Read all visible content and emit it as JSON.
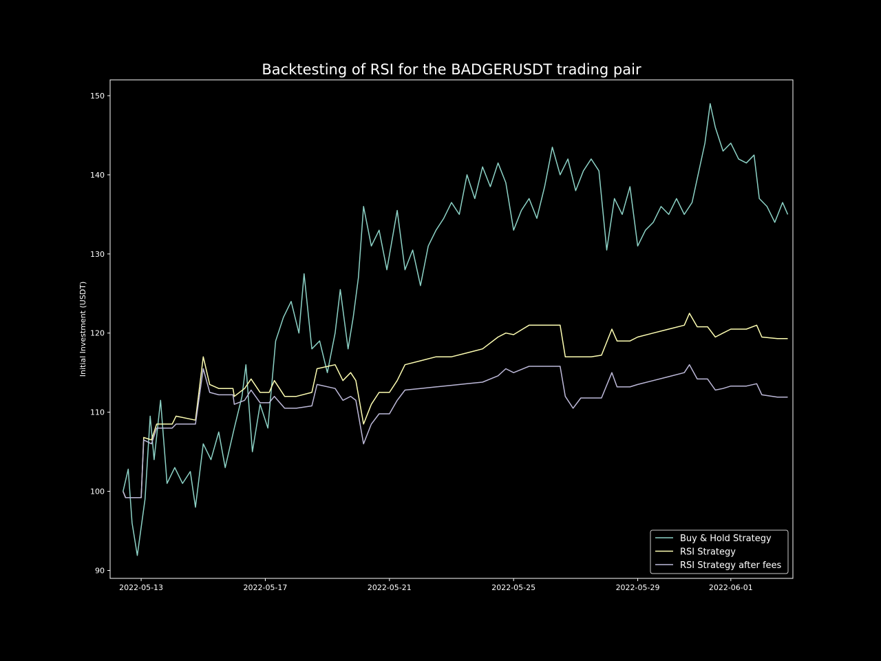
{
  "chart_data": {
    "type": "line",
    "title": "Backtesting of RSI for the BADGERUSDT trading pair",
    "xlabel": "",
    "ylabel": "Initial Investment (USDT)",
    "x_type": "date",
    "xlim": [
      "2022-05-12",
      "2022-06-03"
    ],
    "ylim": [
      89,
      152
    ],
    "x_ticks": [
      "2022-05-13",
      "2022-05-17",
      "2022-05-21",
      "2022-05-25",
      "2022-05-29",
      "2022-06-01"
    ],
    "y_ticks": [
      90,
      100,
      110,
      120,
      130,
      140,
      150
    ],
    "grid": false,
    "legend_position": "lower-right",
    "background": "#000000",
    "series": [
      {
        "name": "Buy & Hold Strategy",
        "color": "#8dd3c7",
        "points": [
          [
            "2022-05-12T10:00",
            100.0
          ],
          [
            "2022-05-12T14:00",
            102.8
          ],
          [
            "2022-05-12T17:00",
            96.0
          ],
          [
            "2022-05-12T21:00",
            91.9
          ],
          [
            "2022-05-13T03:00",
            99.0
          ],
          [
            "2022-05-13T07:00",
            109.5
          ],
          [
            "2022-05-13T10:00",
            104.0
          ],
          [
            "2022-05-13T15:00",
            111.5
          ],
          [
            "2022-05-13T20:00",
            101.0
          ],
          [
            "2022-05-14T02:00",
            103.0
          ],
          [
            "2022-05-14T08:00",
            101.0
          ],
          [
            "2022-05-14T14:00",
            102.5
          ],
          [
            "2022-05-14T18:00",
            98.0
          ],
          [
            "2022-05-15T00:00",
            106.0
          ],
          [
            "2022-05-15T06:00",
            104.0
          ],
          [
            "2022-05-15T12:00",
            107.5
          ],
          [
            "2022-05-15T17:00",
            103.0
          ],
          [
            "2022-05-16T00:00",
            108.0
          ],
          [
            "2022-05-16T06:00",
            112.0
          ],
          [
            "2022-05-16T09:00",
            116.0
          ],
          [
            "2022-05-16T14:00",
            105.0
          ],
          [
            "2022-05-16T20:00",
            111.0
          ],
          [
            "2022-05-17T02:00",
            108.0
          ],
          [
            "2022-05-17T08:00",
            119.0
          ],
          [
            "2022-05-17T14:00",
            122.0
          ],
          [
            "2022-05-17T20:00",
            124.0
          ],
          [
            "2022-05-18T02:00",
            120.0
          ],
          [
            "2022-05-18T06:00",
            127.5
          ],
          [
            "2022-05-18T12:00",
            118.0
          ],
          [
            "2022-05-18T18:00",
            119.0
          ],
          [
            "2022-05-19T00:00",
            115.0
          ],
          [
            "2022-05-19T06:00",
            120.0
          ],
          [
            "2022-05-19T10:00",
            125.5
          ],
          [
            "2022-05-19T16:00",
            118.0
          ],
          [
            "2022-05-19T20:00",
            122.0
          ],
          [
            "2022-05-20T00:00",
            127.0
          ],
          [
            "2022-05-20T04:00",
            136.0
          ],
          [
            "2022-05-20T10:00",
            131.0
          ],
          [
            "2022-05-20T16:00",
            133.0
          ],
          [
            "2022-05-20T22:00",
            128.0
          ],
          [
            "2022-05-21T06:00",
            135.5
          ],
          [
            "2022-05-21T12:00",
            128.0
          ],
          [
            "2022-05-21T18:00",
            130.5
          ],
          [
            "2022-05-22T00:00",
            126.0
          ],
          [
            "2022-05-22T06:00",
            131.0
          ],
          [
            "2022-05-22T12:00",
            133.0
          ],
          [
            "2022-05-22T18:00",
            134.5
          ],
          [
            "2022-05-23T00:00",
            136.5
          ],
          [
            "2022-05-23T06:00",
            135.0
          ],
          [
            "2022-05-23T12:00",
            140.0
          ],
          [
            "2022-05-23T18:00",
            137.0
          ],
          [
            "2022-05-24T00:00",
            141.0
          ],
          [
            "2022-05-24T06:00",
            138.5
          ],
          [
            "2022-05-24T12:00",
            141.5
          ],
          [
            "2022-05-24T18:00",
            139.0
          ],
          [
            "2022-05-25T00:00",
            133.0
          ],
          [
            "2022-05-25T06:00",
            135.5
          ],
          [
            "2022-05-25T12:00",
            137.0
          ],
          [
            "2022-05-25T18:00",
            134.5
          ],
          [
            "2022-05-26T00:00",
            138.5
          ],
          [
            "2022-05-26T06:00",
            143.5
          ],
          [
            "2022-05-26T12:00",
            140.0
          ],
          [
            "2022-05-26T18:00",
            142.0
          ],
          [
            "2022-05-27T00:00",
            138.0
          ],
          [
            "2022-05-27T06:00",
            140.5
          ],
          [
            "2022-05-27T12:00",
            142.0
          ],
          [
            "2022-05-27T18:00",
            140.5
          ],
          [
            "2022-05-28T00:00",
            130.5
          ],
          [
            "2022-05-28T06:00",
            137.0
          ],
          [
            "2022-05-28T12:00",
            135.0
          ],
          [
            "2022-05-28T18:00",
            138.5
          ],
          [
            "2022-05-29T00:00",
            131.0
          ],
          [
            "2022-05-29T06:00",
            133.0
          ],
          [
            "2022-05-29T12:00",
            134.0
          ],
          [
            "2022-05-29T18:00",
            136.0
          ],
          [
            "2022-05-30T00:00",
            135.0
          ],
          [
            "2022-05-30T06:00",
            137.0
          ],
          [
            "2022-05-30T12:00",
            135.0
          ],
          [
            "2022-05-30T18:00",
            136.5
          ],
          [
            "2022-05-31T00:00",
            141.0
          ],
          [
            "2022-05-31T04:00",
            144.0
          ],
          [
            "2022-05-31T08:00",
            149.0
          ],
          [
            "2022-05-31T12:00",
            146.0
          ],
          [
            "2022-05-31T18:00",
            143.0
          ],
          [
            "2022-06-01T00:00",
            144.0
          ],
          [
            "2022-06-01T06:00",
            142.0
          ],
          [
            "2022-06-01T12:00",
            141.5
          ],
          [
            "2022-06-01T18:00",
            142.5
          ],
          [
            "2022-06-01T22:00",
            137.0
          ],
          [
            "2022-06-02T04:00",
            136.0
          ],
          [
            "2022-06-02T10:00",
            134.0
          ],
          [
            "2022-06-02T16:00",
            136.5
          ],
          [
            "2022-06-02T20:00",
            135.0
          ]
        ]
      },
      {
        "name": "RSI Strategy",
        "color": "#ffffb3",
        "points": [
          [
            "2022-05-12T10:00",
            100.0
          ],
          [
            "2022-05-12T12:00",
            99.2
          ],
          [
            "2022-05-13T00:00",
            99.2
          ],
          [
            "2022-05-13T02:00",
            106.8
          ],
          [
            "2022-05-13T08:00",
            106.5
          ],
          [
            "2022-05-13T12:00",
            108.5
          ],
          [
            "2022-05-14T00:00",
            108.5
          ],
          [
            "2022-05-14T03:00",
            109.5
          ],
          [
            "2022-05-14T18:00",
            109.0
          ],
          [
            "2022-05-15T00:00",
            117.0
          ],
          [
            "2022-05-15T05:00",
            113.5
          ],
          [
            "2022-05-15T12:00",
            113.0
          ],
          [
            "2022-05-15T23:00",
            113.0
          ],
          [
            "2022-05-16T00:00",
            112.0
          ],
          [
            "2022-05-16T08:00",
            113.0
          ],
          [
            "2022-05-16T13:00",
            114.2
          ],
          [
            "2022-05-16T20:00",
            112.5
          ],
          [
            "2022-05-17T03:00",
            112.5
          ],
          [
            "2022-05-17T07:00",
            114.0
          ],
          [
            "2022-05-17T15:00",
            112.0
          ],
          [
            "2022-05-18T00:00",
            112.0
          ],
          [
            "2022-05-18T12:00",
            112.5
          ],
          [
            "2022-05-18T16:00",
            115.5
          ],
          [
            "2022-05-19T06:00",
            116.0
          ],
          [
            "2022-05-19T12:00",
            114.0
          ],
          [
            "2022-05-19T18:00",
            115.0
          ],
          [
            "2022-05-19T22:00",
            114.0
          ],
          [
            "2022-05-20T04:00",
            108.5
          ],
          [
            "2022-05-20T10:00",
            111.0
          ],
          [
            "2022-05-20T16:00",
            112.5
          ],
          [
            "2022-05-21T00:00",
            112.5
          ],
          [
            "2022-05-21T06:00",
            114.0
          ],
          [
            "2022-05-21T12:00",
            116.0
          ],
          [
            "2022-05-22T00:00",
            116.5
          ],
          [
            "2022-05-22T12:00",
            117.0
          ],
          [
            "2022-05-23T00:00",
            117.0
          ],
          [
            "2022-05-23T12:00",
            117.5
          ],
          [
            "2022-05-24T00:00",
            118.0
          ],
          [
            "2022-05-24T12:00",
            119.5
          ],
          [
            "2022-05-24T18:00",
            120.0
          ],
          [
            "2022-05-25T00:00",
            119.8
          ],
          [
            "2022-05-25T12:00",
            121.0
          ],
          [
            "2022-05-26T00:00",
            121.0
          ],
          [
            "2022-05-26T12:00",
            121.0
          ],
          [
            "2022-05-26T16:00",
            117.0
          ],
          [
            "2022-05-27T00:00",
            117.0
          ],
          [
            "2022-05-27T12:00",
            117.0
          ],
          [
            "2022-05-27T20:00",
            117.2
          ],
          [
            "2022-05-28T04:00",
            120.5
          ],
          [
            "2022-05-28T08:00",
            119.0
          ],
          [
            "2022-05-28T18:00",
            119.0
          ],
          [
            "2022-05-29T00:00",
            119.5
          ],
          [
            "2022-05-29T12:00",
            120.0
          ],
          [
            "2022-05-30T00:00",
            120.5
          ],
          [
            "2022-05-30T12:00",
            121.0
          ],
          [
            "2022-05-30T16:00",
            122.5
          ],
          [
            "2022-05-30T22:00",
            120.8
          ],
          [
            "2022-05-31T06:00",
            120.8
          ],
          [
            "2022-05-31T12:00",
            119.5
          ],
          [
            "2022-05-31T18:00",
            120.0
          ],
          [
            "2022-06-01T00:00",
            120.5
          ],
          [
            "2022-06-01T12:00",
            120.5
          ],
          [
            "2022-06-01T20:00",
            121.0
          ],
          [
            "2022-06-02T00:00",
            119.5
          ],
          [
            "2022-06-02T12:00",
            119.3
          ],
          [
            "2022-06-02T20:00",
            119.3
          ]
        ]
      },
      {
        "name": "RSI Strategy after fees",
        "color": "#bebada",
        "points": [
          [
            "2022-05-12T10:00",
            100.0
          ],
          [
            "2022-05-12T12:00",
            99.2
          ],
          [
            "2022-05-13T00:00",
            99.2
          ],
          [
            "2022-05-13T02:00",
            106.5
          ],
          [
            "2022-05-13T08:00",
            106.0
          ],
          [
            "2022-05-13T12:00",
            108.0
          ],
          [
            "2022-05-14T00:00",
            108.0
          ],
          [
            "2022-05-14T03:00",
            108.5
          ],
          [
            "2022-05-14T18:00",
            108.5
          ],
          [
            "2022-05-15T00:00",
            115.5
          ],
          [
            "2022-05-15T05:00",
            112.5
          ],
          [
            "2022-05-15T12:00",
            112.2
          ],
          [
            "2022-05-15T23:00",
            112.2
          ],
          [
            "2022-05-16T00:00",
            111.0
          ],
          [
            "2022-05-16T08:00",
            111.5
          ],
          [
            "2022-05-16T13:00",
            112.8
          ],
          [
            "2022-05-16T20:00",
            111.2
          ],
          [
            "2022-05-17T03:00",
            111.2
          ],
          [
            "2022-05-17T07:00",
            112.0
          ],
          [
            "2022-05-17T15:00",
            110.5
          ],
          [
            "2022-05-18T00:00",
            110.5
          ],
          [
            "2022-05-18T12:00",
            110.8
          ],
          [
            "2022-05-18T16:00",
            113.5
          ],
          [
            "2022-05-19T06:00",
            113.0
          ],
          [
            "2022-05-19T12:00",
            111.5
          ],
          [
            "2022-05-19T18:00",
            112.0
          ],
          [
            "2022-05-19T22:00",
            111.5
          ],
          [
            "2022-05-20T04:00",
            106.0
          ],
          [
            "2022-05-20T10:00",
            108.5
          ],
          [
            "2022-05-20T16:00",
            109.8
          ],
          [
            "2022-05-21T00:00",
            109.8
          ],
          [
            "2022-05-21T06:00",
            111.5
          ],
          [
            "2022-05-21T12:00",
            112.8
          ],
          [
            "2022-05-22T00:00",
            113.0
          ],
          [
            "2022-05-22T12:00",
            113.2
          ],
          [
            "2022-05-23T00:00",
            113.4
          ],
          [
            "2022-05-23T12:00",
            113.6
          ],
          [
            "2022-05-24T00:00",
            113.8
          ],
          [
            "2022-05-24T12:00",
            114.6
          ],
          [
            "2022-05-24T18:00",
            115.5
          ],
          [
            "2022-05-25T00:00",
            115.0
          ],
          [
            "2022-05-25T12:00",
            115.8
          ],
          [
            "2022-05-26T00:00",
            115.8
          ],
          [
            "2022-05-26T12:00",
            115.8
          ],
          [
            "2022-05-26T16:00",
            112.0
          ],
          [
            "2022-05-26T22:00",
            110.5
          ],
          [
            "2022-05-27T04:00",
            111.8
          ],
          [
            "2022-05-27T12:00",
            111.8
          ],
          [
            "2022-05-27T20:00",
            111.8
          ],
          [
            "2022-05-28T04:00",
            115.0
          ],
          [
            "2022-05-28T08:00",
            113.2
          ],
          [
            "2022-05-28T18:00",
            113.2
          ],
          [
            "2022-05-29T00:00",
            113.5
          ],
          [
            "2022-05-29T12:00",
            114.0
          ],
          [
            "2022-05-30T00:00",
            114.5
          ],
          [
            "2022-05-30T12:00",
            115.0
          ],
          [
            "2022-05-30T16:00",
            116.0
          ],
          [
            "2022-05-30T22:00",
            114.2
          ],
          [
            "2022-05-31T06:00",
            114.2
          ],
          [
            "2022-05-31T12:00",
            112.8
          ],
          [
            "2022-05-31T18:00",
            113.0
          ],
          [
            "2022-06-01T00:00",
            113.3
          ],
          [
            "2022-06-01T12:00",
            113.3
          ],
          [
            "2022-06-01T20:00",
            113.6
          ],
          [
            "2022-06-02T00:00",
            112.2
          ],
          [
            "2022-06-02T12:00",
            111.9
          ],
          [
            "2022-06-02T20:00",
            111.9
          ]
        ]
      }
    ]
  }
}
